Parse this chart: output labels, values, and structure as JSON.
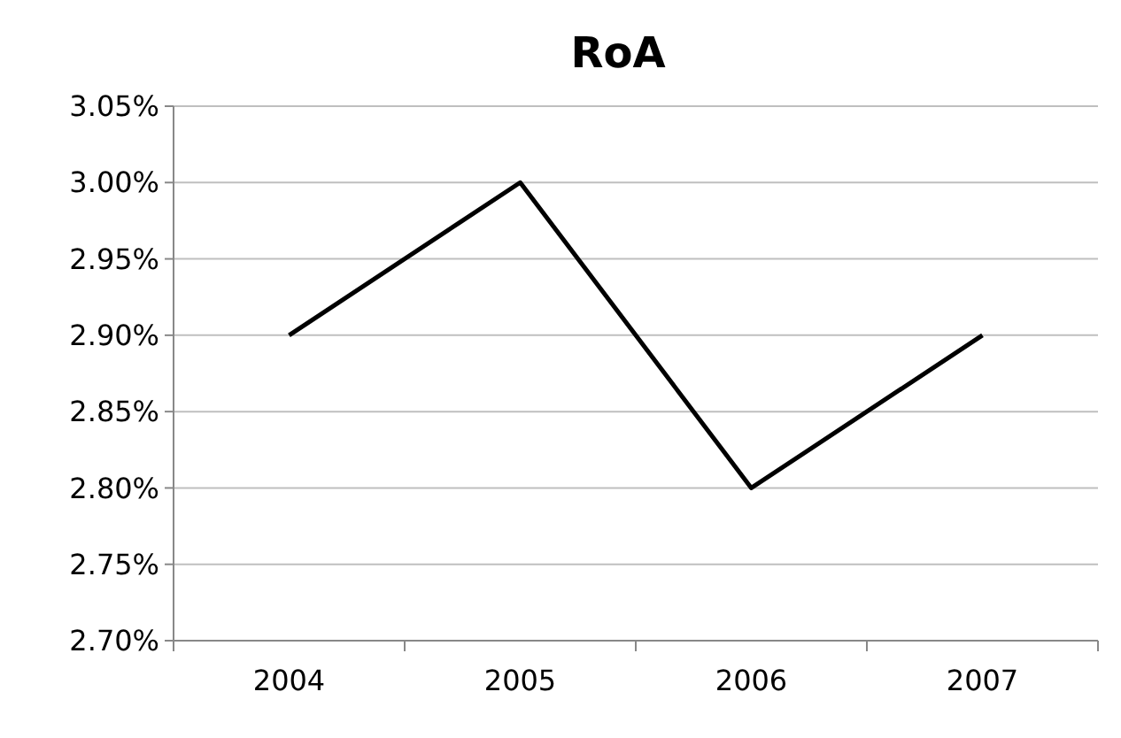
{
  "chart_data": {
    "type": "line",
    "title": "RoA",
    "categories": [
      "2004",
      "2005",
      "2006",
      "2007"
    ],
    "series": [
      {
        "color": "#000000",
        "values": [
          2.9,
          3.0,
          2.8,
          2.9
        ]
      }
    ],
    "ylim": [
      2.7,
      3.05
    ],
    "yticks": [
      {
        "value": 2.7,
        "label": "2.70%"
      },
      {
        "value": 2.75,
        "label": "2.75%"
      },
      {
        "value": 2.8,
        "label": "2.80%"
      },
      {
        "value": 2.85,
        "label": "2.85%"
      },
      {
        "value": 2.9,
        "label": "2.90%"
      },
      {
        "value": 2.95,
        "label": "2.95%"
      },
      {
        "value": 3.0,
        "label": "3.00%"
      },
      {
        "value": 3.05,
        "label": "3.05%"
      }
    ],
    "grid": "y",
    "marker": "none",
    "line_style": "solid"
  }
}
